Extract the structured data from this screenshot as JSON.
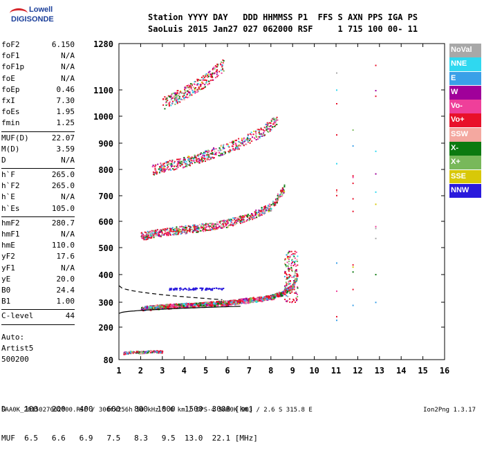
{
  "logo": {
    "line1": "Lowell",
    "line2": "DIGISONDE"
  },
  "header": {
    "row1": "Station YYYY DAY   DDD HHMMSS P1  FFS S AXN PPS IGA PS",
    "row2": "SaoLuis 2015 Jan27 027 062000 RSF     1 715 100 00- 11"
  },
  "params": [
    {
      "name": "foF2",
      "value": "6.150"
    },
    {
      "name": "foF1",
      "value": "N/A"
    },
    {
      "name": "foF1p",
      "value": "N/A"
    },
    {
      "name": "foE",
      "value": "N/A"
    },
    {
      "name": "foEp",
      "value": "0.46"
    },
    {
      "name": "fxI",
      "value": "7.30"
    },
    {
      "name": "foEs",
      "value": "1.95"
    },
    {
      "name": "fmin",
      "value": "1.25"
    },
    {
      "sep": true
    },
    {
      "name": "MUF(D)",
      "value": "22.07"
    },
    {
      "name": "M(D)",
      "value": "3.59"
    },
    {
      "name": "D",
      "value": "N/A"
    },
    {
      "sep": true
    },
    {
      "name": "h`F",
      "value": "265.0"
    },
    {
      "name": "h`F2",
      "value": "265.0"
    },
    {
      "name": "h`E",
      "value": "N/A"
    },
    {
      "name": "h`Es",
      "value": "105.0"
    },
    {
      "sep": true
    },
    {
      "name": "hmF2",
      "value": "280.7"
    },
    {
      "name": "hmF1",
      "value": "N/A"
    },
    {
      "name": "hmE",
      "value": "110.0"
    },
    {
      "name": "yF2",
      "value": "17.6"
    },
    {
      "name": "yF1",
      "value": "N/A"
    },
    {
      "name": "yE",
      "value": "20.0"
    },
    {
      "name": "B0",
      "value": "24.4"
    },
    {
      "name": "B1",
      "value": "1.00"
    },
    {
      "sep": true
    },
    {
      "name": "C-level",
      "value": "44"
    },
    {
      "sep": true
    }
  ],
  "auto": {
    "line1": "Auto:",
    "line2": "Artist5",
    "line3": "500200"
  },
  "legend": [
    {
      "label": "NoVal",
      "color": "#a8a8a8"
    },
    {
      "label": "NNE",
      "color": "#2fd8f0"
    },
    {
      "label": "E",
      "color": "#3aa0e8"
    },
    {
      "label": "W",
      "color": "#a0009a"
    },
    {
      "label": "Vo-",
      "color": "#ef3f9a"
    },
    {
      "label": "Vo+",
      "color": "#e8102a"
    },
    {
      "label": "SSW",
      "color": "#f4a8a0"
    },
    {
      "label": "X-",
      "color": "#0c7a10"
    },
    {
      "label": "X+",
      "color": "#78b85a"
    },
    {
      "label": "SSE",
      "color": "#d8c808"
    },
    {
      "label": "NNW",
      "color": "#2a1adc"
    }
  ],
  "chart_data": {
    "type": "scatter",
    "title": "",
    "x_ticks": [
      "1",
      "2",
      "3",
      "4",
      "5",
      "6",
      "7",
      "8",
      "9",
      "10",
      "11",
      "12",
      "13",
      "14",
      "15",
      "16"
    ],
    "y_ticks": [
      "80",
      "200",
      "300",
      "400",
      "500",
      "600",
      "700",
      "800",
      "900",
      "1000",
      "1100",
      "1280"
    ],
    "xlim": [
      1,
      16
    ],
    "ylim": [
      80,
      1280
    ],
    "traces": [
      {
        "name": "F-trace",
        "x": [
          2.0,
          3.0,
          4.0,
          5.0,
          6.0,
          7.0,
          8.0,
          8.5,
          9.0,
          9.2
        ],
        "y": [
          278,
          285,
          290,
          295,
          300,
          310,
          320,
          335,
          360,
          410
        ]
      },
      {
        "name": "2F-trace",
        "x": [
          2.0,
          3.0,
          4.0,
          5.0,
          6.0,
          7.0,
          8.0,
          8.6
        ],
        "y": [
          545,
          560,
          570,
          580,
          595,
          620,
          660,
          730
        ]
      },
      {
        "name": "3F-trace",
        "x": [
          2.5,
          3.5,
          4.5,
          5.5,
          6.5,
          7.5,
          8.3
        ],
        "y": [
          800,
          820,
          840,
          870,
          900,
          940,
          990
        ]
      },
      {
        "name": "4F-trace",
        "x": [
          3.0,
          4.0,
          5.0,
          5.8
        ],
        "y": [
          1050,
          1090,
          1140,
          1200
        ]
      },
      {
        "name": "Es-trace",
        "x": [
          1.2,
          1.6,
          2.0,
          2.6,
          3.0
        ],
        "y": [
          105,
          110,
          108,
          112,
          110
        ]
      }
    ]
  },
  "muf_table": {
    "d_label": "D",
    "d_values": [
      "100",
      "200",
      "400",
      "600",
      "800",
      "1000",
      "1500",
      "3000"
    ],
    "d_unit": "[km]",
    "muf_label": "MUF",
    "muf_values": [
      "6.5",
      "6.6",
      "6.9",
      "7.5",
      "8.3",
      "9.5",
      "13.0",
      "22.1"
    ],
    "muf_unit": "[MHz]"
  },
  "footer": "SAA0K_2015027062000.RSF / 300fx256h 50 kHz 5.0 km / DPS-4 SAA0K 903 / 2.6 S 315.8 E",
  "version": "Ion2Png 1.3.17"
}
